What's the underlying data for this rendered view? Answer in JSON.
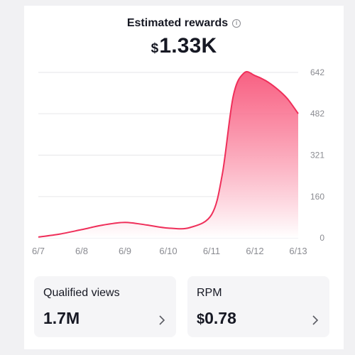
{
  "header": {
    "title": "Estimated rewards",
    "amount_currency": "$",
    "amount_value": "1.33K"
  },
  "chart_data": {
    "type": "area",
    "x": [
      "6/7",
      "6/8",
      "6/9",
      "6/10",
      "6/11",
      "6/12",
      "6/13"
    ],
    "y_ticks": [
      "642",
      "482",
      "321",
      "160",
      "0"
    ],
    "ylim": [
      0,
      642
    ],
    "series": [
      {
        "x": [
          0,
          0.5,
          1,
          1.5,
          2,
          2.5,
          3,
          3.5,
          4,
          4.25,
          4.5,
          4.75,
          5,
          5.25,
          5.5,
          5.75,
          6
        ],
        "values": [
          3,
          15,
          32,
          50,
          60,
          50,
          38,
          40,
          90,
          250,
          550,
          640,
          630,
          610,
          580,
          540,
          482
        ]
      }
    ],
    "grid": true,
    "colors": {
      "line": "#ef2f5a",
      "fill_top": "#f7456d",
      "fill_bottom": "#ffffff"
    }
  },
  "cards": [
    {
      "label": "Qualified views",
      "currency": "",
      "value": "1.7M"
    },
    {
      "label": "RPM",
      "currency": "$",
      "value": "0.78"
    }
  ],
  "icons": {
    "info": "info-circle-icon",
    "chevron": "chevron-right-icon"
  }
}
